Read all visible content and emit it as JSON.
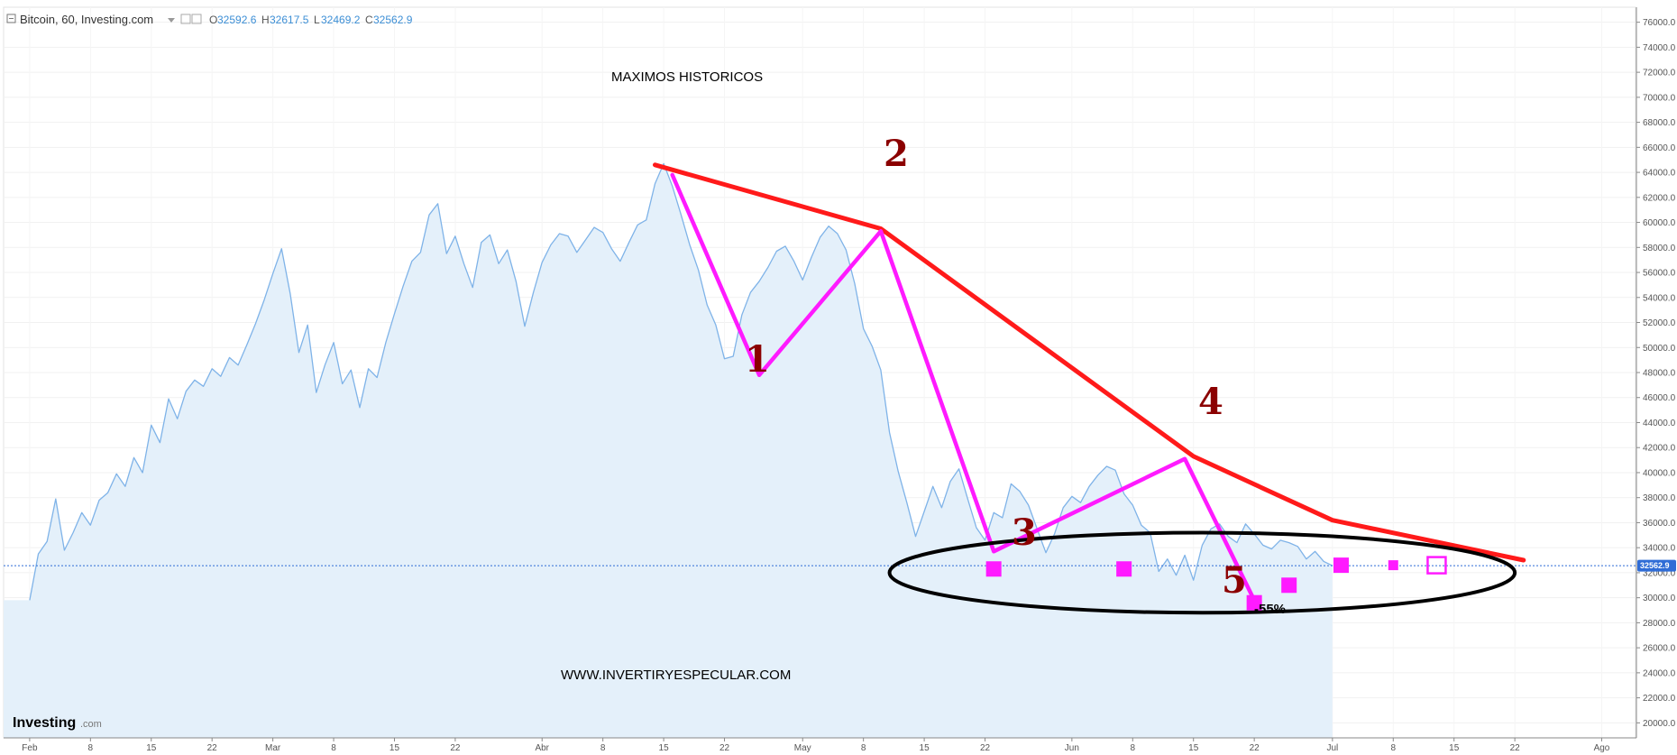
{
  "header": {
    "instrument": "Bitcoin, 60, Investing.com",
    "open_key": "O",
    "open": "32592.6",
    "high_key": "H",
    "high": "32617.5",
    "low_key": "L",
    "low": "32469.2",
    "close_key": "C",
    "close": "32562.9"
  },
  "branding": {
    "logo_bold": "Investing",
    "logo_suffix": ".com"
  },
  "annotations": {
    "top_label": "MAXIMOS HISTORICOS",
    "drop_label": "-55%",
    "website": "WWW.INVERTIRYESPECULAR.COM",
    "wave_1": "1",
    "wave_2": "2",
    "wave_3": "3",
    "wave_4": "4",
    "wave_5": "5"
  },
  "colors": {
    "price_line": "#7fb3e8",
    "area_fill": "#e4f0fa",
    "trendline": "#ff1a1a",
    "waves": "#ff1aff",
    "ellipse": "#000000",
    "wave_numbers": "#8b0000",
    "price_tag": "#2f6cd6"
  },
  "chart_data": {
    "type": "line",
    "series": [
      {
        "values": [
          29800,
          33500,
          34500,
          37900,
          33800,
          35200,
          36800,
          35800,
          37800,
          38400,
          39900,
          38900,
          41200,
          40000,
          43800,
          42400,
          45900,
          44300,
          46500,
          47400,
          46900,
          48300,
          47700,
          49200,
          48600,
          50200,
          51900,
          53800,
          55900,
          57900,
          54300,
          49600,
          51800,
          46400,
          48600,
          50400,
          47100,
          48200,
          45200,
          48300,
          47600,
          50400,
          52700,
          54900,
          56900,
          57600,
          60600,
          61500,
          57500,
          58900,
          56700,
          54800,
          58400,
          59000,
          56700,
          57800,
          55300,
          51700,
          54400,
          56800,
          58200,
          59100,
          58900,
          57600,
          58600,
          59600,
          59200,
          57900,
          56900,
          58400,
          59800,
          60200,
          63100,
          64700,
          62900,
          60600,
          58200,
          56200,
          53400,
          51800,
          49100,
          49300,
          52600,
          54400,
          55300,
          56400,
          57700,
          58100,
          56900,
          55400,
          57200,
          58800,
          59700,
          59100,
          57800,
          55100,
          51500,
          50100,
          48200,
          43200,
          40100,
          37600,
          34900,
          36900,
          38900,
          37200,
          39300,
          40300,
          37900,
          35600,
          34600,
          36800,
          36400,
          39100,
          38500,
          37400,
          35500,
          33600,
          35100,
          37200,
          38100,
          37600,
          38900,
          39800,
          40500,
          40200,
          38300,
          37400,
          35800,
          35200,
          32100,
          33100,
          31800,
          33400,
          31400,
          34200,
          35500,
          35900,
          34900,
          34400,
          35900,
          35100,
          34200,
          33900,
          34600,
          34400,
          34100,
          33100,
          33700,
          32900,
          32563
        ],
        "x_start": "2021-02-01",
        "x_step_days": 1
      }
    ],
    "x_tick_labels": [
      "Feb",
      "8",
      "15",
      "22",
      "Mar",
      "8",
      "15",
      "22",
      "Abr",
      "8",
      "15",
      "22",
      "May",
      "8",
      "15",
      "22",
      "Jun",
      "8",
      "15",
      "22",
      "Jul",
      "8",
      "15",
      "22",
      "Ago"
    ],
    "y_tick_labels": [
      "20000.0",
      "22000.0",
      "24000.0",
      "26000.0",
      "28000.0",
      "30000.0",
      "32000.0",
      "34000.0",
      "36000.0",
      "38000.0",
      "40000.0",
      "42000.0",
      "44000.0",
      "46000.0",
      "48000.0",
      "50000.0",
      "52000.0",
      "54000.0",
      "56000.0",
      "58000.0",
      "60000.0",
      "62000.0",
      "64000.0",
      "66000.0",
      "68000.0",
      "70000.0",
      "72000.0",
      "74000.0",
      "76000.0"
    ],
    "x_range": [
      "2021-01-29",
      "2021-08-05"
    ],
    "ylim": [
      18800,
      77200
    ],
    "current_price_label": "32562.9",
    "trendline": [
      {
        "x": "2021-04-14",
        "y": 64600
      },
      {
        "x": "2021-05-10",
        "y": 59500
      },
      {
        "x": "2021-06-15",
        "y": 41300
      },
      {
        "x": "2021-07-01",
        "y": 36200
      },
      {
        "x": "2021-07-23",
        "y": 33000
      }
    ],
    "waves": [
      {
        "x": "2021-04-16",
        "y": 63800
      },
      {
        "x": "2021-04-26",
        "y": 47800
      },
      {
        "x": "2021-05-10",
        "y": 59300
      },
      {
        "x": "2021-05-23",
        "y": 33700
      },
      {
        "x": "2021-06-14",
        "y": 41100
      },
      {
        "x": "2021-06-22",
        "y": 29800
      }
    ],
    "ellipse": {
      "x_center": "2021-06-16",
      "y_center": 32000,
      "x_halfwidth_days": 36,
      "y_halfheight": 3200
    },
    "markers": [
      {
        "x": "2021-05-23",
        "y": 32300
      },
      {
        "x": "2021-06-07",
        "y": 32300
      },
      {
        "x": "2021-06-22",
        "y": 29600
      },
      {
        "x": "2021-06-26",
        "y": 31000
      },
      {
        "x": "2021-07-02",
        "y": 32600
      },
      {
        "x": "2021-07-08",
        "y": 32600
      }
    ],
    "marker_outline": {
      "x": "2021-07-13",
      "y": 32600
    },
    "grid": true,
    "legend": "none"
  }
}
